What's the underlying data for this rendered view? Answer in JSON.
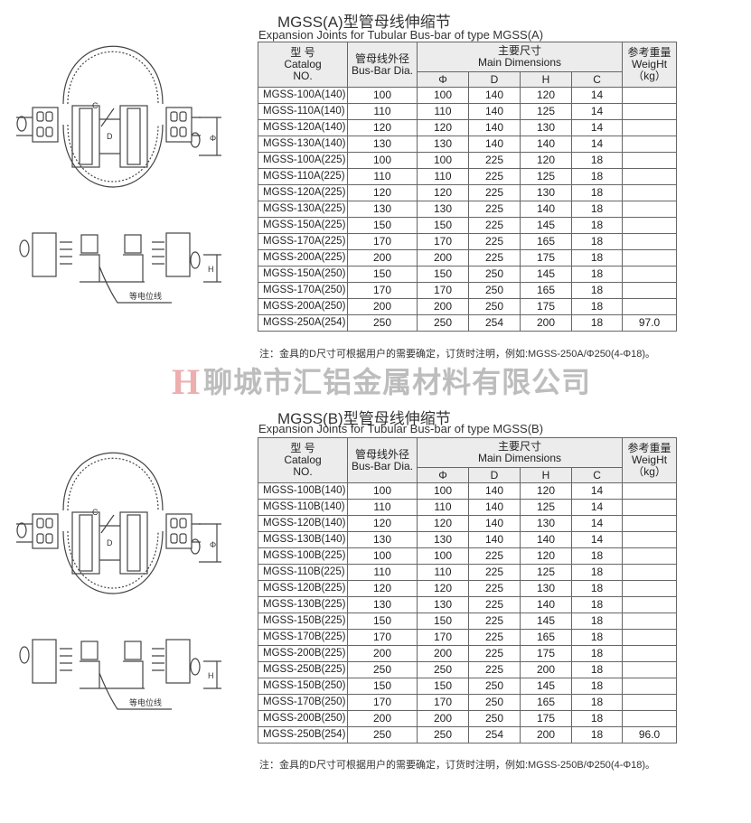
{
  "watermark": {
    "logo": "H",
    "company": "聊城市汇铝金属材料有限公司"
  },
  "header_labels": {
    "catalog": [
      "型 号",
      "Catalog",
      "NO."
    ],
    "dia": [
      "管母线外径",
      "Bus-Bar Dia."
    ],
    "main": [
      "主要尺寸",
      "Main Dimensions"
    ],
    "weight": [
      "参考重量",
      "WeigHt",
      "（kg）"
    ],
    "dims": [
      "Φ",
      "D",
      "H",
      "C"
    ]
  },
  "drawing_labels": {
    "c": "C",
    "d": "D",
    "phi": "Φ",
    "h": "H",
    "wire": "等电位线"
  },
  "sections": [
    {
      "title": "MGSS(A)型管母线伸缩节",
      "subtitle": "Expansion Joints for Tubular Bus-bar of type MGSS(A)",
      "note": "注：金具的D尺寸可根据用户的需要确定，订货时注明，例如:MGSS-250A/Φ250(4-Φ18)。",
      "rows": [
        [
          "MGSS-100A(140)",
          "100",
          "100",
          "140",
          "120",
          "14",
          ""
        ],
        [
          "MGSS-110A(140)",
          "110",
          "110",
          "140",
          "125",
          "14",
          ""
        ],
        [
          "MGSS-120A(140)",
          "120",
          "120",
          "140",
          "130",
          "14",
          ""
        ],
        [
          "MGSS-130A(140)",
          "130",
          "130",
          "140",
          "140",
          "14",
          ""
        ],
        [
          "MGSS-100A(225)",
          "100",
          "100",
          "225",
          "120",
          "18",
          ""
        ],
        [
          "MGSS-110A(225)",
          "110",
          "110",
          "225",
          "125",
          "18",
          ""
        ],
        [
          "MGSS-120A(225)",
          "120",
          "120",
          "225",
          "130",
          "18",
          ""
        ],
        [
          "MGSS-130A(225)",
          "130",
          "130",
          "225",
          "140",
          "18",
          ""
        ],
        [
          "MGSS-150A(225)",
          "150",
          "150",
          "225",
          "145",
          "18",
          ""
        ],
        [
          "MGSS-170A(225)",
          "170",
          "170",
          "225",
          "165",
          "18",
          ""
        ],
        [
          "MGSS-200A(225)",
          "200",
          "200",
          "225",
          "175",
          "18",
          ""
        ],
        [
          "MGSS-150A(250)",
          "150",
          "150",
          "250",
          "145",
          "18",
          ""
        ],
        [
          "MGSS-170A(250)",
          "170",
          "170",
          "250",
          "165",
          "18",
          ""
        ],
        [
          "MGSS-200A(250)",
          "200",
          "200",
          "250",
          "175",
          "18",
          ""
        ],
        [
          "MGSS-250A(254)",
          "250",
          "250",
          "254",
          "200",
          "18",
          "97.0"
        ]
      ]
    },
    {
      "title": "MGSS(B)型管母线伸缩节",
      "subtitle": "Expansion Joints for Tubular Bus-bar of type MGSS(B)",
      "note": "注：金具的D尺寸可根据用户的需要确定，订货时注明，例如:MGSS-250B/Φ250(4-Φ18)。",
      "rows": [
        [
          "MGSS-100B(140)",
          "100",
          "100",
          "140",
          "120",
          "14",
          ""
        ],
        [
          "MGSS-110B(140)",
          "110",
          "110",
          "140",
          "125",
          "14",
          ""
        ],
        [
          "MGSS-120B(140)",
          "120",
          "120",
          "140",
          "130",
          "14",
          ""
        ],
        [
          "MGSS-130B(140)",
          "130",
          "130",
          "140",
          "140",
          "14",
          ""
        ],
        [
          "MGSS-100B(225)",
          "100",
          "100",
          "225",
          "120",
          "18",
          ""
        ],
        [
          "MGSS-110B(225)",
          "110",
          "110",
          "225",
          "125",
          "18",
          ""
        ],
        [
          "MGSS-120B(225)",
          "120",
          "120",
          "225",
          "130",
          "18",
          ""
        ],
        [
          "MGSS-130B(225)",
          "130",
          "130",
          "225",
          "140",
          "18",
          ""
        ],
        [
          "MGSS-150B(225)",
          "150",
          "150",
          "225",
          "145",
          "18",
          ""
        ],
        [
          "MGSS-170B(225)",
          "170",
          "170",
          "225",
          "165",
          "18",
          ""
        ],
        [
          "MGSS-200B(225)",
          "200",
          "200",
          "225",
          "175",
          "18",
          ""
        ],
        [
          "MGSS-250B(225)",
          "250",
          "250",
          "225",
          "200",
          "18",
          ""
        ],
        [
          "MGSS-150B(250)",
          "150",
          "150",
          "250",
          "145",
          "18",
          ""
        ],
        [
          "MGSS-170B(250)",
          "170",
          "170",
          "250",
          "165",
          "18",
          ""
        ],
        [
          "MGSS-200B(250)",
          "200",
          "200",
          "250",
          "175",
          "18",
          ""
        ],
        [
          "MGSS-250B(254)",
          "250",
          "250",
          "254",
          "200",
          "18",
          "96.0"
        ]
      ]
    }
  ]
}
